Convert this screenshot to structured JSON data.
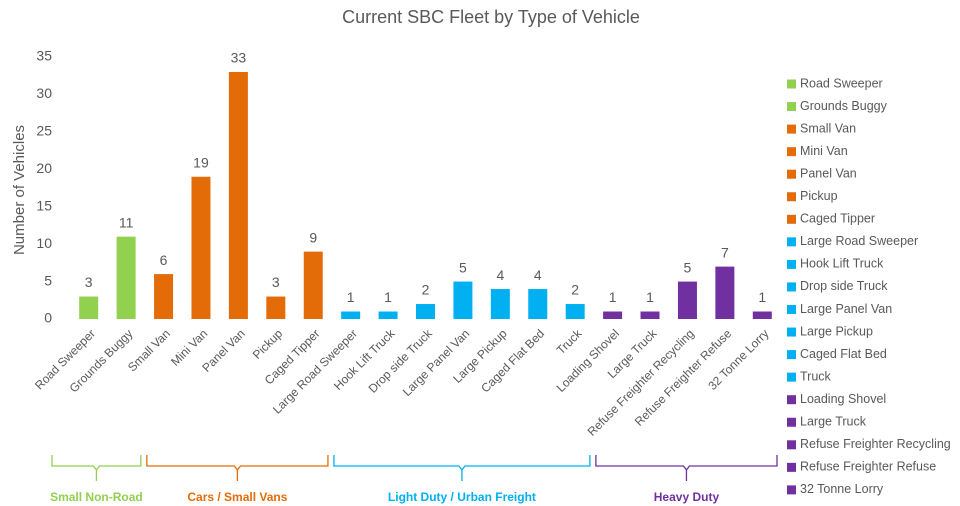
{
  "chart_data": {
    "type": "bar",
    "title": "Current SBC Fleet by Type of Vehicle",
    "y_label": "Number of Vehicles",
    "ylim": [
      0,
      35
    ],
    "yticks": [
      0,
      5,
      10,
      15,
      20,
      25,
      30,
      35
    ],
    "grid": false,
    "legend": "right",
    "series": [
      {
        "name": "Small Non-Road",
        "color": "#92d050",
        "categories": [
          "Road Sweeper",
          "Grounds Buggy"
        ],
        "values": [
          3,
          11
        ]
      },
      {
        "name": "Cars / Small Vans",
        "color": "#e36c09",
        "categories": [
          "Small Van",
          "Mini Van",
          "Panel Van",
          "Pickup",
          "Caged Tipper"
        ],
        "values": [
          6,
          19,
          33,
          3,
          9
        ]
      },
      {
        "name": "Light Duty / Urban Freight",
        "color": "#00b0f0",
        "categories": [
          "Large Road Sweeper",
          "Hook Lift Truck",
          "Drop side Truck",
          "Large Panel Van",
          "Large Pickup",
          "Caged Flat Bed",
          "Truck"
        ],
        "values": [
          1,
          1,
          2,
          5,
          4,
          4,
          2
        ]
      },
      {
        "name": "Heavy Duty",
        "color": "#7030a0",
        "categories": [
          "Loading Shovel",
          "Large Truck",
          "Refuse Freighter Recycling",
          "Refuse Freighter Refuse",
          "32 Tonne Lorry"
        ],
        "values": [
          1,
          1,
          5,
          7,
          1
        ]
      }
    ]
  }
}
